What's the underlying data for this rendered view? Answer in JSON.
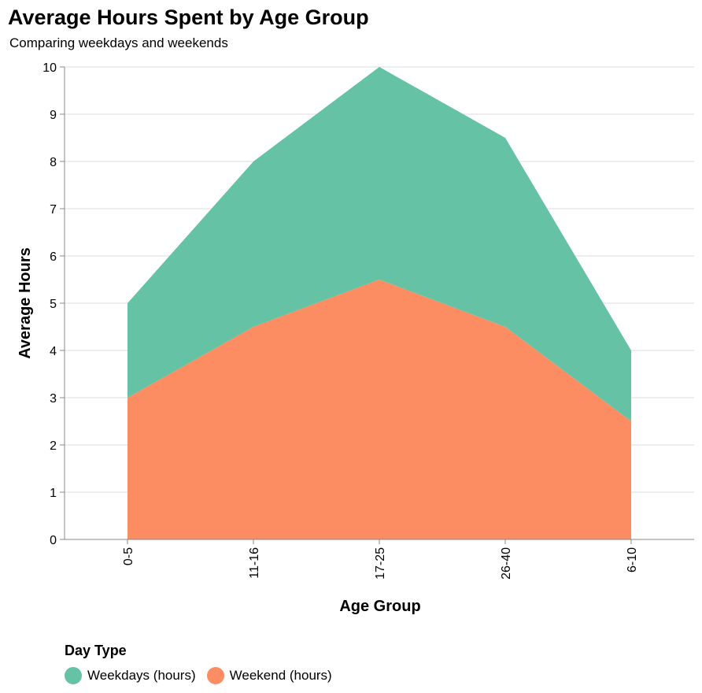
{
  "chart_data": {
    "type": "area",
    "title": "Average Hours Spent by Age Group",
    "subtitle": "Comparing weekdays and weekends",
    "xlabel": "Age Group",
    "ylabel": "Average Hours",
    "categories": [
      "0-5",
      "11-16",
      "17-25",
      "26-40",
      "6-10"
    ],
    "series": [
      {
        "name": "Weekend (hours)",
        "values": [
          3,
          4.5,
          5.5,
          4.5,
          2.5
        ],
        "color": "#fc8d62"
      },
      {
        "name": "Weekdays (hours)",
        "values": [
          2,
          3.5,
          4.5,
          4,
          1.5
        ],
        "color": "#66c2a5"
      }
    ],
    "stacked": true,
    "ylim": [
      0,
      10
    ],
    "yticks": [
      0,
      1,
      2,
      3,
      4,
      5,
      6,
      7,
      8,
      9,
      10
    ],
    "grid": true,
    "legend_title": "Day Type",
    "legend": [
      {
        "label": "Weekdays (hours)",
        "color": "#66c2a5"
      },
      {
        "label": "Weekend (hours)",
        "color": "#fc8d62"
      }
    ],
    "legend_position": "bottom-left"
  }
}
